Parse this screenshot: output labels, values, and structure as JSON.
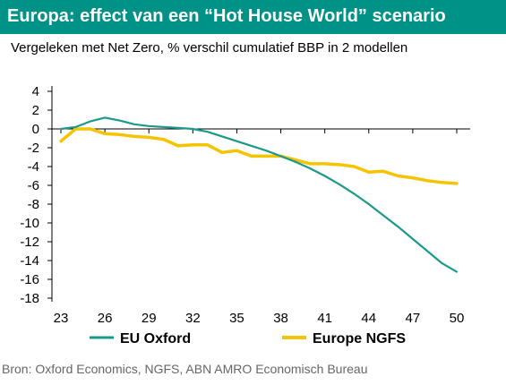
{
  "header": {
    "title": "Europa: effect van een “Hot House World” scenario",
    "subtitle": "Vergeleken met Net Zero, % verschil cumulatief BBP in 2 modellen"
  },
  "footer": {
    "source": "Bron: Oxford Economics, NGFS, ABN AMRO Economisch Bureau"
  },
  "colors": {
    "title_bg": "#009286",
    "eu_oxford": "#1b998b",
    "europe_ngfs": "#f5c400"
  },
  "chart_data": {
    "type": "line",
    "title": "Europa: effect van een “Hot House World” scenario",
    "subtitle": "Vergeleken met Net Zero, % verschil cumulatief BBP in 2 modellen",
    "x": [
      23,
      24,
      25,
      26,
      27,
      28,
      29,
      30,
      31,
      32,
      33,
      34,
      35,
      36,
      37,
      38,
      39,
      40,
      41,
      42,
      43,
      44,
      45,
      46,
      47,
      48,
      49,
      50
    ],
    "x_ticks": [
      "23",
      "26",
      "29",
      "32",
      "35",
      "38",
      "41",
      "44",
      "47",
      "50"
    ],
    "y_ticks": [
      "4",
      "2",
      "0",
      "-2",
      "-4",
      "-6",
      "-8",
      "-10",
      "-12",
      "-14",
      "-16",
      "-18"
    ],
    "ylim": [
      -18,
      4
    ],
    "xlim": [
      23,
      50
    ],
    "series": [
      {
        "name": "EU Oxford",
        "values": [
          0.0,
          0.2,
          0.8,
          1.2,
          0.9,
          0.5,
          0.3,
          0.2,
          0.1,
          0.0,
          -0.3,
          -0.8,
          -1.3,
          -1.8,
          -2.3,
          -2.9,
          -3.5,
          -4.2,
          -5.0,
          -5.9,
          -6.9,
          -8.0,
          -9.2,
          -10.4,
          -11.7,
          -13.0,
          -14.3,
          -15.2
        ]
      },
      {
        "name": "Europe NGFS",
        "values": [
          -1.3,
          0.0,
          0.0,
          -0.5,
          -0.6,
          -0.8,
          -0.9,
          -1.1,
          -1.8,
          -1.7,
          -1.7,
          -2.5,
          -2.3,
          -2.9,
          -2.9,
          -2.9,
          -3.3,
          -3.7,
          -3.7,
          -3.8,
          -4.0,
          -4.6,
          -4.5,
          -5.0,
          -5.2,
          -5.5,
          -5.7,
          -5.8
        ]
      }
    ],
    "legend_position": "bottom",
    "grid": false
  }
}
